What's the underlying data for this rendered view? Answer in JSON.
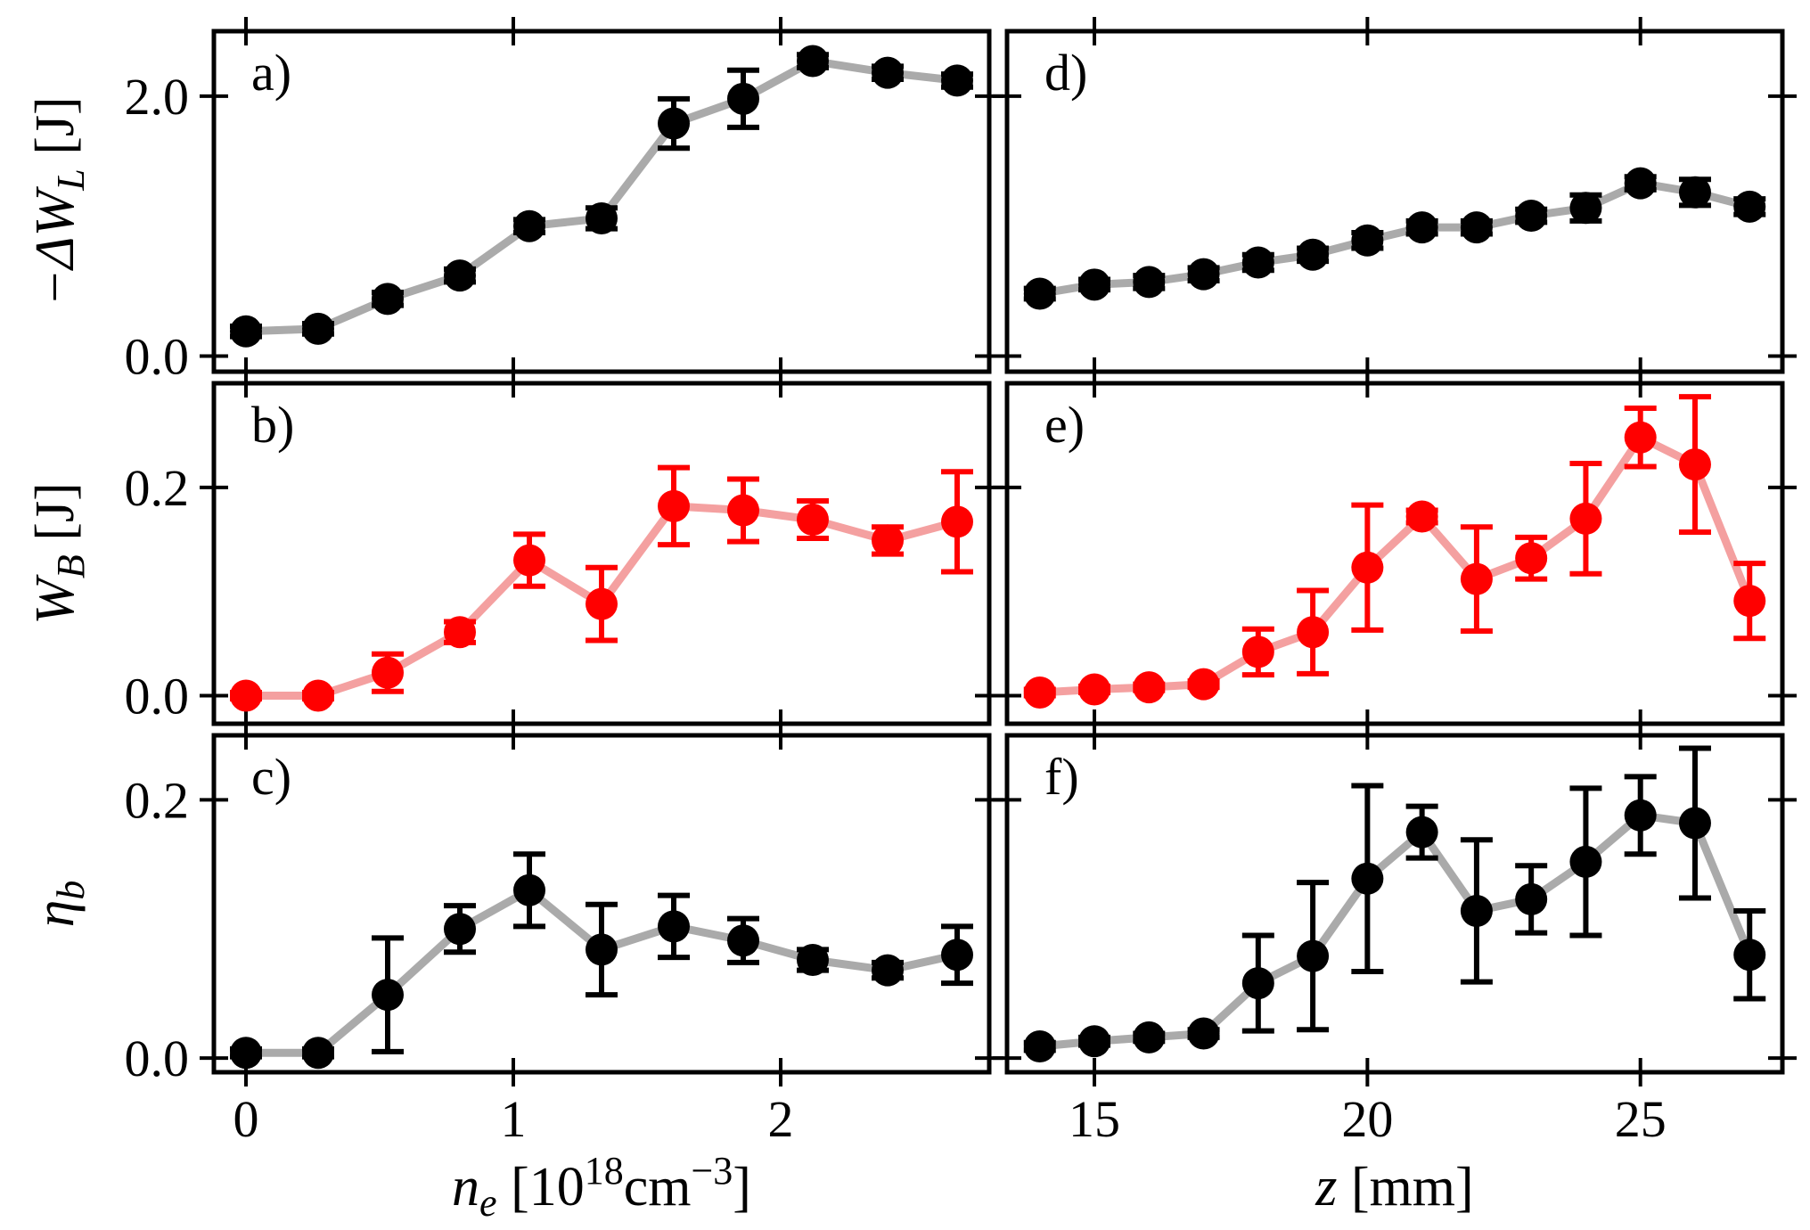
{
  "chart_data": [
    {
      "id": "a",
      "panel_label": "a)",
      "type": "line",
      "color": "#000000",
      "line_color": "#aaaaaa",
      "x": [
        0,
        0.27,
        0.53,
        0.8,
        1.06,
        1.33,
        1.6,
        1.86,
        2.12,
        2.4,
        2.66
      ],
      "y": [
        0.19,
        0.21,
        0.44,
        0.62,
        1.0,
        1.06,
        1.79,
        1.98,
        2.27,
        2.18,
        2.12
      ],
      "yerr": [
        0.04,
        0.04,
        0.05,
        0.05,
        0.05,
        0.08,
        0.19,
        0.22,
        0.05,
        0.05,
        0.05
      ],
      "xlim": [
        -0.12,
        2.78
      ],
      "ylim": [
        -0.12,
        2.5
      ],
      "yticks": [
        0.0,
        2.0
      ],
      "ytick_labels": [
        "0.0",
        "2.0"
      ],
      "xticks": [
        0,
        1,
        2
      ],
      "xtick_labels": [],
      "ylabel": "−ΔW",
      "ylabel_sub": "L",
      "ylabel_unit": " [J]"
    },
    {
      "id": "b",
      "panel_label": "b)",
      "type": "line",
      "color": "#ff0000",
      "line_color": "#f4a0a0",
      "x": [
        0,
        0.27,
        0.53,
        0.8,
        1.06,
        1.33,
        1.6,
        1.86,
        2.12,
        2.4,
        2.66
      ],
      "y": [
        0.0,
        0.0,
        0.022,
        0.061,
        0.13,
        0.088,
        0.182,
        0.178,
        0.169,
        0.149,
        0.167
      ],
      "yerr": [
        0.003,
        0.003,
        0.018,
        0.01,
        0.025,
        0.035,
        0.037,
        0.03,
        0.018,
        0.013,
        0.048
      ],
      "xlim": [
        -0.12,
        2.78
      ],
      "ylim": [
        -0.027,
        0.3
      ],
      "yticks": [
        0.0,
        0.2
      ],
      "ytick_labels": [
        "0.0",
        "0.2"
      ],
      "xticks": [
        0,
        1,
        2
      ],
      "xtick_labels": [],
      "ylabel": "W",
      "ylabel_sub": "B",
      "ylabel_unit": " [J]"
    },
    {
      "id": "c",
      "panel_label": "c)",
      "type": "line",
      "color": "#000000",
      "line_color": "#aaaaaa",
      "x": [
        0,
        0.27,
        0.53,
        0.8,
        1.06,
        1.33,
        1.6,
        1.86,
        2.12,
        2.4,
        2.66
      ],
      "y": [
        0.004,
        0.004,
        0.049,
        0.1,
        0.13,
        0.084,
        0.102,
        0.091,
        0.076,
        0.068,
        0.08
      ],
      "yerr": [
        0.003,
        0.003,
        0.044,
        0.018,
        0.028,
        0.035,
        0.024,
        0.017,
        0.008,
        0.006,
        0.022
      ],
      "xlim": [
        -0.12,
        2.78
      ],
      "ylim": [
        -0.011,
        0.25
      ],
      "yticks": [
        0.0,
        0.2
      ],
      "ytick_labels": [
        "0.0",
        "0.2"
      ],
      "xticks": [
        0,
        1,
        2
      ],
      "xtick_labels": [
        "0",
        "1",
        "2"
      ],
      "ylabel": "η",
      "ylabel_sub": "b",
      "ylabel_unit": "",
      "xlabel": "n",
      "xlabel_sub": "e",
      "xlabel_unit": " [10",
      "xlabel_sup": "18",
      "xlabel_unit2": "cm",
      "xlabel_sup2": "−3",
      "xlabel_end": "]"
    },
    {
      "id": "d",
      "panel_label": "d)",
      "type": "line",
      "color": "#000000",
      "line_color": "#aaaaaa",
      "x": [
        14,
        15,
        16,
        17,
        18,
        19,
        20,
        21,
        22,
        23,
        24,
        25,
        26,
        27
      ],
      "y": [
        0.48,
        0.55,
        0.57,
        0.63,
        0.72,
        0.78,
        0.89,
        0.99,
        0.99,
        1.08,
        1.14,
        1.33,
        1.26,
        1.15
      ],
      "yerr": [
        0.04,
        0.04,
        0.05,
        0.05,
        0.06,
        0.05,
        0.06,
        0.05,
        0.05,
        0.05,
        0.1,
        0.05,
        0.1,
        0.06
      ],
      "xlim": [
        13.4,
        27.6
      ],
      "ylim": [
        -0.12,
        2.5
      ],
      "yticks": [
        0.0,
        2.0
      ],
      "ytick_labels": [],
      "xticks": [
        15,
        20,
        25
      ],
      "xtick_labels": []
    },
    {
      "id": "e",
      "panel_label": "e)",
      "type": "line",
      "color": "#ff0000",
      "line_color": "#f4a0a0",
      "x": [
        14,
        15,
        16,
        17,
        18,
        19,
        20,
        21,
        22,
        23,
        24,
        25,
        26,
        27
      ],
      "y": [
        0.003,
        0.006,
        0.008,
        0.011,
        0.042,
        0.061,
        0.123,
        0.172,
        0.112,
        0.132,
        0.17,
        0.248,
        0.222,
        0.091
      ],
      "yerr": [
        0.003,
        0.003,
        0.003,
        0.003,
        0.022,
        0.04,
        0.06,
        0.006,
        0.05,
        0.02,
        0.053,
        0.028,
        0.065,
        0.036
      ],
      "xlim": [
        13.4,
        27.6
      ],
      "ylim": [
        -0.027,
        0.3
      ],
      "yticks": [
        0.0,
        0.2
      ],
      "ytick_labels": [],
      "xticks": [
        15,
        20,
        25
      ],
      "xtick_labels": []
    },
    {
      "id": "f",
      "panel_label": "f)",
      "type": "line",
      "color": "#000000",
      "line_color": "#aaaaaa",
      "x": [
        14,
        15,
        16,
        17,
        18,
        19,
        20,
        21,
        22,
        23,
        24,
        25,
        26,
        27
      ],
      "y": [
        0.009,
        0.013,
        0.016,
        0.019,
        0.058,
        0.079,
        0.139,
        0.175,
        0.114,
        0.123,
        0.152,
        0.188,
        0.182,
        0.08
      ],
      "yerr": [
        0.003,
        0.003,
        0.003,
        0.003,
        0.037,
        0.057,
        0.072,
        0.02,
        0.055,
        0.026,
        0.057,
        0.03,
        0.058,
        0.034
      ],
      "xlim": [
        13.4,
        27.6
      ],
      "ylim": [
        -0.011,
        0.25
      ],
      "yticks": [
        0.0,
        0.2
      ],
      "ytick_labels": [],
      "xticks": [
        15,
        20,
        25
      ],
      "xtick_labels": [
        "15",
        "20",
        "25"
      ],
      "xlabel": "z",
      "xlabel_unit": " [mm]"
    }
  ]
}
